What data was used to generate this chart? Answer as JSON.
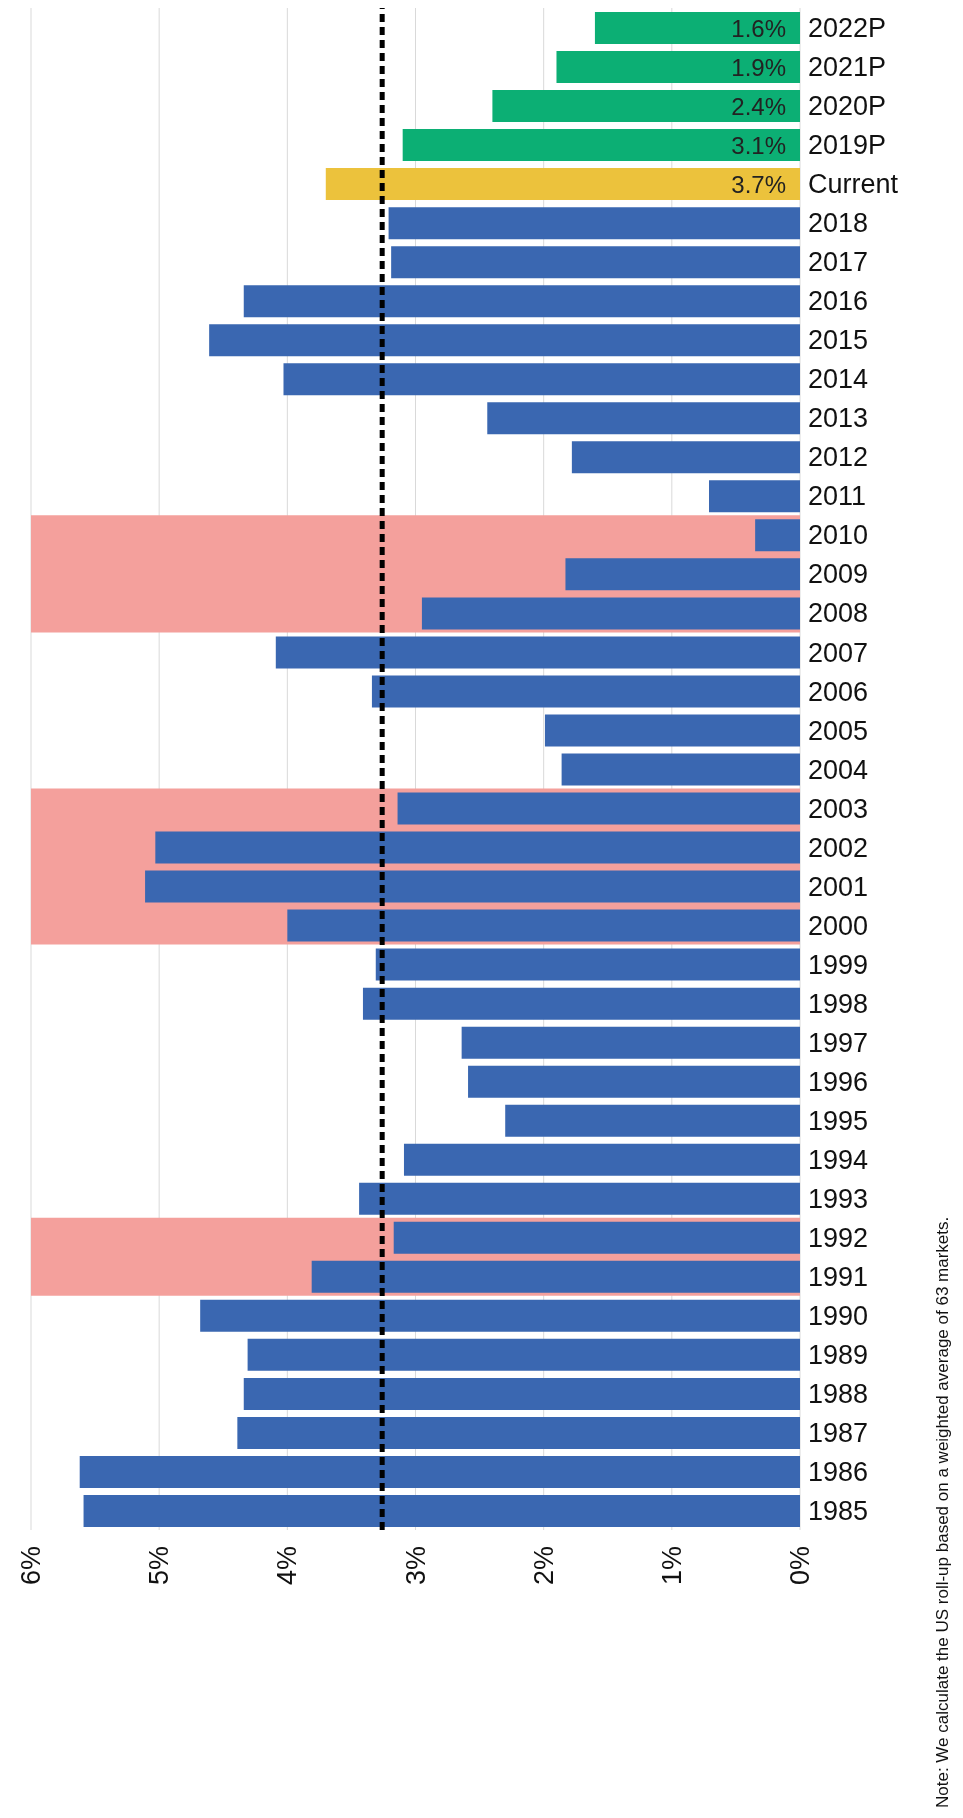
{
  "chart_data": {
    "type": "bar",
    "orientation": "horizontal",
    "categories": [
      "2022P",
      "2021P",
      "2020P",
      "2019P",
      "Current",
      "2018",
      "2017",
      "2016",
      "2015",
      "2014",
      "2013",
      "2012",
      "2011",
      "2010",
      "2009",
      "2008",
      "2007",
      "2006",
      "2005",
      "2004",
      "2003",
      "2002",
      "2001",
      "2000",
      "1999",
      "1998",
      "1997",
      "1996",
      "1995",
      "1994",
      "1993",
      "1992",
      "1991",
      "1990",
      "1989",
      "1988",
      "1987",
      "1986",
      "1985"
    ],
    "values": [
      1.6,
      1.9,
      2.4,
      3.1,
      3.7,
      3.21,
      3.19,
      4.34,
      4.61,
      4.03,
      2.44,
      1.78,
      0.71,
      0.35,
      1.83,
      2.95,
      4.09,
      3.34,
      1.99,
      1.86,
      3.14,
      5.03,
      5.11,
      4.0,
      3.31,
      3.41,
      2.64,
      2.59,
      2.3,
      3.09,
      3.44,
      3.17,
      3.81,
      4.68,
      4.31,
      4.34,
      4.39,
      5.62,
      5.59
    ],
    "colors": [
      "#0caf74",
      "#0caf74",
      "#0caf74",
      "#0caf74",
      "#ecc23c",
      "#3a67b1",
      "#3a67b1",
      "#3a67b1",
      "#3a67b1",
      "#3a67b1",
      "#3a67b1",
      "#3a67b1",
      "#3a67b1",
      "#3a67b1",
      "#3a67b1",
      "#3a67b1",
      "#3a67b1",
      "#3a67b1",
      "#3a67b1",
      "#3a67b1",
      "#3a67b1",
      "#3a67b1",
      "#3a67b1",
      "#3a67b1",
      "#3a67b1",
      "#3a67b1",
      "#3a67b1",
      "#3a67b1",
      "#3a67b1",
      "#3a67b1",
      "#3a67b1",
      "#3a67b1",
      "#3a67b1",
      "#3a67b1",
      "#3a67b1",
      "#3a67b1",
      "#3a67b1",
      "#3a67b1",
      "#3a67b1"
    ],
    "value_labels": [
      "1.6%",
      "1.9%",
      "2.4%",
      "3.1%",
      "3.7%",
      null,
      null,
      null,
      null,
      null,
      null,
      null,
      null,
      null,
      null,
      null,
      null,
      null,
      null,
      null,
      null,
      null,
      null,
      null,
      null,
      null,
      null,
      null,
      null,
      null,
      null,
      null,
      null,
      null,
      null,
      null,
      null,
      null,
      null
    ],
    "xlim": [
      6,
      0
    ],
    "xticks": [
      {
        "value": 0,
        "label": "0%"
      },
      {
        "value": 1,
        "label": "1%"
      },
      {
        "value": 2,
        "label": "2%"
      },
      {
        "value": 3,
        "label": "3%"
      },
      {
        "value": 4,
        "label": "4%"
      },
      {
        "value": 5,
        "label": "5%"
      },
      {
        "value": 6,
        "label": "6%"
      }
    ],
    "grid": "x",
    "ref_lines": [
      {
        "axis": "x",
        "value": 3.26,
        "color": "#000000",
        "line_style": "dashed"
      }
    ],
    "bands": [
      {
        "axis": "y",
        "from": "2010",
        "to": "2008",
        "color": "#f4a09c"
      },
      {
        "axis": "y",
        "from": "2003",
        "to": "2000",
        "color": "#f4a09c"
      },
      {
        "axis": "y",
        "from": "1992",
        "to": "1991",
        "color": "#f4a09c"
      }
    ],
    "annotations": [
      "Note: We calculate the US roll-up based on a weighted average of 63 markets."
    ]
  }
}
